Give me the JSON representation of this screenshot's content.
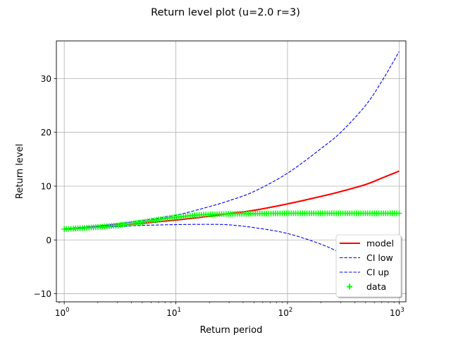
{
  "chart_data": {
    "type": "line",
    "title": "Return level plot (u=2.0 r=3)",
    "xlabel": "Return period",
    "ylabel": "Return level",
    "xscale": "log",
    "xlim": [
      0.85,
      1150
    ],
    "ylim": [
      -11.5,
      37
    ],
    "x_ticks": [
      {
        "value": 1,
        "base": "10",
        "exp": "0"
      },
      {
        "value": 10,
        "base": "10",
        "exp": "1"
      },
      {
        "value": 100,
        "base": "10",
        "exp": "2"
      },
      {
        "value": 1000,
        "base": "10",
        "exp": "3"
      }
    ],
    "y_ticks": [
      {
        "value": -10,
        "label": "−10"
      },
      {
        "value": 0,
        "label": "0"
      },
      {
        "value": 10,
        "label": "10"
      },
      {
        "value": 20,
        "label": "20"
      },
      {
        "value": 30,
        "label": "30"
      }
    ],
    "grid": true,
    "legend_position": "lower-right",
    "series": [
      {
        "name": "model",
        "kind": "line",
        "color": "#ff0000",
        "dash": "solid",
        "points": [
          [
            1,
            2.0
          ],
          [
            2,
            2.45
          ],
          [
            3,
            2.75
          ],
          [
            5,
            3.1
          ],
          [
            10,
            3.7
          ],
          [
            20,
            4.4
          ],
          [
            30,
            4.9
          ],
          [
            50,
            5.5
          ],
          [
            100,
            6.7
          ],
          [
            200,
            8.1
          ],
          [
            300,
            9.0
          ],
          [
            500,
            10.3
          ],
          [
            700,
            11.5
          ],
          [
            1000,
            12.8
          ]
        ]
      },
      {
        "name": "CI low",
        "kind": "line",
        "color": "#0000ff",
        "dash": "dashed",
        "points": [
          [
            1,
            2.1
          ],
          [
            2,
            2.6
          ],
          [
            3,
            3.0
          ],
          [
            5,
            3.6
          ],
          [
            10,
            4.6
          ],
          [
            20,
            6.2
          ],
          [
            30,
            7.3
          ],
          [
            50,
            9.0
          ],
          [
            100,
            12.4
          ],
          [
            200,
            17.0
          ],
          [
            300,
            20.0
          ],
          [
            500,
            25.0
          ],
          [
            700,
            29.5
          ],
          [
            1000,
            35.0
          ]
        ]
      },
      {
        "name": "CI up",
        "kind": "line",
        "color": "#0000ff",
        "dash": "dashed",
        "points": [
          [
            1,
            1.9
          ],
          [
            2,
            2.3
          ],
          [
            3,
            2.5
          ],
          [
            5,
            2.7
          ],
          [
            10,
            2.85
          ],
          [
            20,
            2.9
          ],
          [
            30,
            2.8
          ],
          [
            50,
            2.3
          ],
          [
            100,
            1.2
          ],
          [
            200,
            -0.8
          ],
          [
            300,
            -2.5
          ],
          [
            500,
            -5.2
          ],
          [
            700,
            -7.5
          ],
          [
            1000,
            -9.8
          ]
        ]
      },
      {
        "name": "data",
        "kind": "scatter",
        "marker": "+",
        "color": "#00ff00",
        "x_range": [
          1,
          1000
        ],
        "count": 150,
        "points": [
          [
            1,
            2.0
          ],
          [
            2,
            2.4
          ],
          [
            3,
            2.7
          ],
          [
            5,
            3.3
          ],
          [
            7,
            3.8
          ],
          [
            10,
            4.25
          ],
          [
            15,
            4.6
          ],
          [
            20,
            4.75
          ],
          [
            30,
            4.85
          ],
          [
            50,
            4.9
          ],
          [
            100,
            4.95
          ],
          [
            1000,
            4.95
          ]
        ]
      }
    ]
  }
}
